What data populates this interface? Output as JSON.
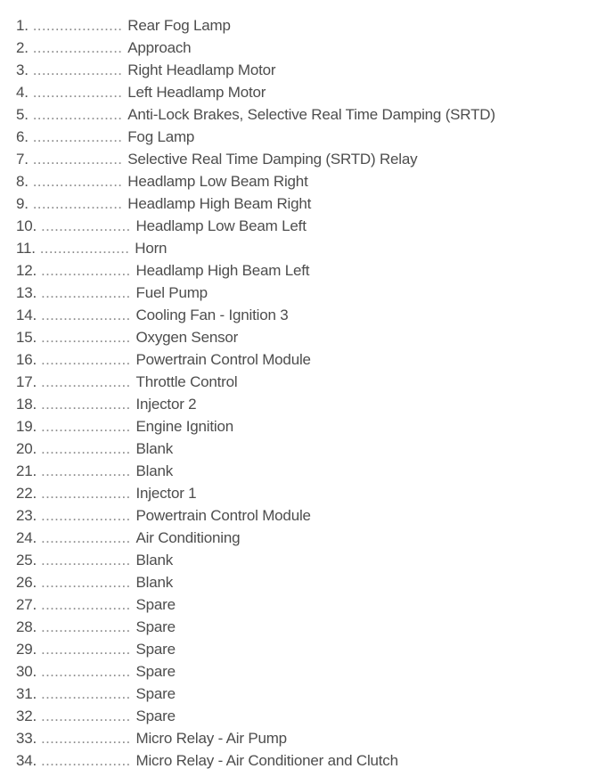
{
  "page": {
    "background": "#ffffff",
    "text_color": "#4d4d4d",
    "dots_color": "#8c8c8c"
  },
  "fuse_list": {
    "leader": "....................",
    "items": [
      {
        "num": "1.",
        "label": "Rear Fog Lamp"
      },
      {
        "num": "2.",
        "label": "Approach"
      },
      {
        "num": "3.",
        "label": "Right Headlamp Motor"
      },
      {
        "num": "4.",
        "label": "Left Headlamp Motor"
      },
      {
        "num": "5.",
        "label": "Anti-Lock Brakes, Selective Real Time Damping (SRTD)"
      },
      {
        "num": "6.",
        "label": "Fog Lamp"
      },
      {
        "num": "7.",
        "label": "Selective Real Time Damping (SRTD) Relay"
      },
      {
        "num": "8.",
        "label": "Headlamp Low Beam Right"
      },
      {
        "num": "9.",
        "label": "Headlamp High Beam Right"
      },
      {
        "num": "10.",
        "label": "Headlamp Low Beam Left"
      },
      {
        "num": "11.",
        "label": "Horn"
      },
      {
        "num": "12.",
        "label": "Headlamp High Beam Left"
      },
      {
        "num": "13.",
        "label": "Fuel Pump"
      },
      {
        "num": "14.",
        "label": "Cooling Fan - Ignition 3"
      },
      {
        "num": "15.",
        "label": "Oxygen Sensor"
      },
      {
        "num": "16.",
        "label": "Powertrain Control Module"
      },
      {
        "num": "17.",
        "label": "Throttle Control"
      },
      {
        "num": "18.",
        "label": "Injector 2"
      },
      {
        "num": "19.",
        "label": "Engine Ignition"
      },
      {
        "num": "20.",
        "label": "Blank"
      },
      {
        "num": "21.",
        "label": "Blank"
      },
      {
        "num": "22.",
        "label": "Injector 1"
      },
      {
        "num": "23.",
        "label": "Powertrain Control Module"
      },
      {
        "num": "24.",
        "label": "Air Conditioning"
      },
      {
        "num": "25.",
        "label": "Blank"
      },
      {
        "num": "26.",
        "label": "Blank"
      },
      {
        "num": "27.",
        "label": "Spare"
      },
      {
        "num": "28.",
        "label": "Spare"
      },
      {
        "num": "29.",
        "label": "Spare"
      },
      {
        "num": "30.",
        "label": "Spare"
      },
      {
        "num": "31.",
        "label": "Spare"
      },
      {
        "num": "32.",
        "label": "Spare"
      },
      {
        "num": "33.",
        "label": "Micro Relay - Air Pump"
      },
      {
        "num": "34.",
        "label": "Micro Relay - Air Conditioner and Clutch"
      }
    ]
  }
}
